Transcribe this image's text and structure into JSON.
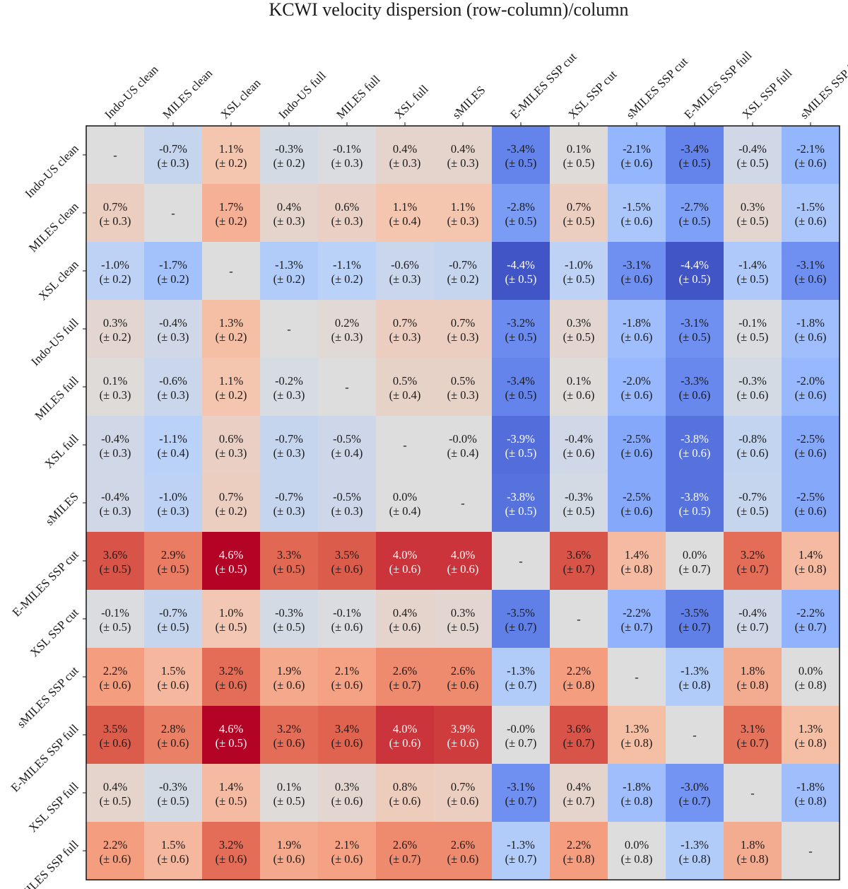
{
  "chart_data": {
    "type": "heatmap",
    "title": "KCWI velocity dispersion (row-column)/column",
    "xlabel": "",
    "ylabel": "",
    "labels": [
      "Indo-US clean",
      "MILES clean",
      "XSL clean",
      "Indo-US full",
      "MILES full",
      "XSL full",
      "sMILES",
      "E-MILES SSP cut",
      "XSL SSP cut",
      "sMILES SSP cut",
      "E-MILES SSP full",
      "XSL SSP full",
      "sMILES SSP full"
    ],
    "unit": "%",
    "diagonal_symbol": "-",
    "colorscale": "coolwarm",
    "color_range": [
      -4.6,
      4.6
    ],
    "values": [
      [
        null,
        -0.7,
        1.1,
        -0.3,
        -0.1,
        0.4,
        0.4,
        -3.4,
        0.1,
        -2.1,
        -3.4,
        -0.4,
        -2.1
      ],
      [
        0.7,
        null,
        1.7,
        0.4,
        0.6,
        1.1,
        1.1,
        -2.8,
        0.7,
        -1.5,
        -2.7,
        0.3,
        -1.5
      ],
      [
        -1.0,
        -1.7,
        null,
        -1.3,
        -1.1,
        -0.6,
        -0.7,
        -4.4,
        -1.0,
        -3.1,
        -4.4,
        -1.4,
        -3.1
      ],
      [
        0.3,
        -0.4,
        1.3,
        null,
        0.2,
        0.7,
        0.7,
        -3.2,
        0.3,
        -1.8,
        -3.1,
        -0.1,
        -1.8
      ],
      [
        0.1,
        -0.6,
        1.1,
        -0.2,
        null,
        0.5,
        0.5,
        -3.4,
        0.1,
        -2.0,
        -3.3,
        -0.3,
        -2.0
      ],
      [
        -0.4,
        -1.1,
        0.6,
        -0.7,
        -0.5,
        null,
        "-0.0",
        -3.9,
        -0.4,
        -2.5,
        -3.8,
        -0.8,
        -2.5
      ],
      [
        -0.4,
        -1.0,
        0.7,
        -0.7,
        -0.5,
        0.0,
        null,
        -3.8,
        -0.3,
        -2.5,
        -3.8,
        -0.7,
        -2.5
      ],
      [
        3.6,
        2.9,
        4.6,
        3.3,
        3.5,
        4.0,
        4.0,
        null,
        3.6,
        1.4,
        0.0,
        3.2,
        1.4
      ],
      [
        -0.1,
        -0.7,
        1.0,
        -0.3,
        -0.1,
        0.4,
        0.3,
        -3.5,
        null,
        -2.2,
        -3.5,
        -0.4,
        -2.2
      ],
      [
        2.2,
        1.5,
        3.2,
        1.9,
        2.1,
        2.6,
        2.6,
        -1.3,
        2.2,
        null,
        -1.3,
        1.8,
        0.0
      ],
      [
        3.5,
        2.8,
        4.6,
        3.2,
        3.4,
        4.0,
        3.9,
        "-0.0",
        3.6,
        1.3,
        null,
        3.1,
        1.3
      ],
      [
        0.4,
        -0.3,
        1.4,
        0.1,
        0.3,
        0.8,
        0.7,
        -3.1,
        0.4,
        -1.8,
        -3.0,
        null,
        -1.8
      ],
      [
        2.2,
        1.5,
        3.2,
        1.9,
        2.1,
        2.6,
        2.6,
        -1.3,
        2.2,
        0.0,
        -1.3,
        1.8,
        null
      ]
    ],
    "errors": [
      [
        null,
        0.3,
        0.2,
        0.2,
        0.3,
        0.3,
        0.3,
        0.5,
        0.5,
        0.6,
        0.5,
        0.5,
        0.6
      ],
      [
        0.3,
        null,
        0.2,
        0.3,
        0.3,
        0.4,
        0.3,
        0.5,
        0.5,
        0.6,
        0.5,
        0.5,
        0.6
      ],
      [
        0.2,
        0.2,
        null,
        0.2,
        0.2,
        0.3,
        0.2,
        0.5,
        0.5,
        0.6,
        0.5,
        0.5,
        0.6
      ],
      [
        0.2,
        0.3,
        0.2,
        null,
        0.3,
        0.3,
        0.3,
        0.5,
        0.5,
        0.6,
        0.5,
        0.5,
        0.6
      ],
      [
        0.3,
        0.3,
        0.2,
        0.3,
        null,
        0.4,
        0.3,
        0.5,
        0.6,
        0.6,
        0.6,
        0.6,
        0.6
      ],
      [
        0.3,
        0.4,
        0.3,
        0.3,
        0.4,
        null,
        0.4,
        0.5,
        0.6,
        0.6,
        0.6,
        0.6,
        0.6
      ],
      [
        0.3,
        0.3,
        0.2,
        0.3,
        0.3,
        0.4,
        null,
        0.5,
        0.5,
        0.6,
        0.5,
        0.5,
        0.6
      ],
      [
        0.5,
        0.5,
        0.5,
        0.5,
        0.6,
        0.6,
        0.6,
        null,
        0.7,
        0.8,
        0.7,
        0.7,
        0.8
      ],
      [
        0.5,
        0.5,
        0.5,
        0.5,
        0.6,
        0.6,
        0.5,
        0.7,
        null,
        0.7,
        0.7,
        0.7,
        0.7
      ],
      [
        0.6,
        0.6,
        0.6,
        0.6,
        0.6,
        0.7,
        0.6,
        0.7,
        0.8,
        null,
        0.8,
        0.8,
        0.8
      ],
      [
        0.6,
        0.6,
        0.5,
        0.6,
        0.6,
        0.6,
        0.6,
        0.7,
        0.7,
        0.8,
        null,
        0.7,
        0.8
      ],
      [
        0.5,
        0.5,
        0.5,
        0.5,
        0.6,
        0.6,
        0.6,
        0.7,
        0.7,
        0.8,
        0.7,
        null,
        0.8
      ],
      [
        0.6,
        0.6,
        0.6,
        0.6,
        0.6,
        0.7,
        0.6,
        0.7,
        0.8,
        0.8,
        0.8,
        0.8,
        null
      ]
    ]
  }
}
